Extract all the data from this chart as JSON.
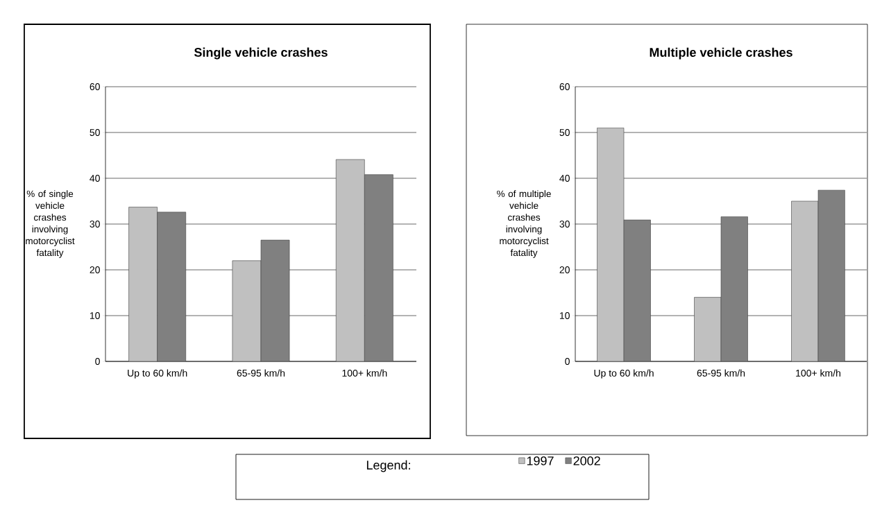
{
  "chart_data": [
    {
      "type": "bar",
      "title": "Single vehicle crashes",
      "ylabel": "% of single vehicle crashes involving motorcyclist fatality",
      "categories": [
        "Up to 60 km/h",
        "65-95 km/h",
        "100+ km/h"
      ],
      "series": [
        {
          "name": "1997",
          "color": "#c0c0c0",
          "values": [
            33.7,
            22.0,
            44.1
          ]
        },
        {
          "name": "2002",
          "color": "#808080",
          "values": [
            32.6,
            26.5,
            40.8
          ]
        }
      ],
      "ylim": [
        0,
        60
      ],
      "yticks": [
        0,
        10,
        20,
        30,
        40,
        50,
        60
      ],
      "grid": "y",
      "legend": "bottom",
      "legend_title": "Legend:"
    },
    {
      "type": "bar",
      "title": "Multiple vehicle crashes",
      "ylabel": "% of multiple vehicle crashes involving motorcyclist fatality",
      "categories": [
        "Up to 60 km/h",
        "65-95 km/h",
        "100+ km/h"
      ],
      "series": [
        {
          "color": "#c0c0c0",
          "values": [
            51.0,
            14.0,
            35.0
          ]
        },
        {
          "color": "#808080",
          "values": [
            30.9,
            31.6,
            37.4
          ]
        }
      ],
      "ylim": [
        0,
        60
      ],
      "yticks": [
        0,
        10,
        20,
        30,
        40,
        50,
        60
      ],
      "grid": "y"
    }
  ]
}
